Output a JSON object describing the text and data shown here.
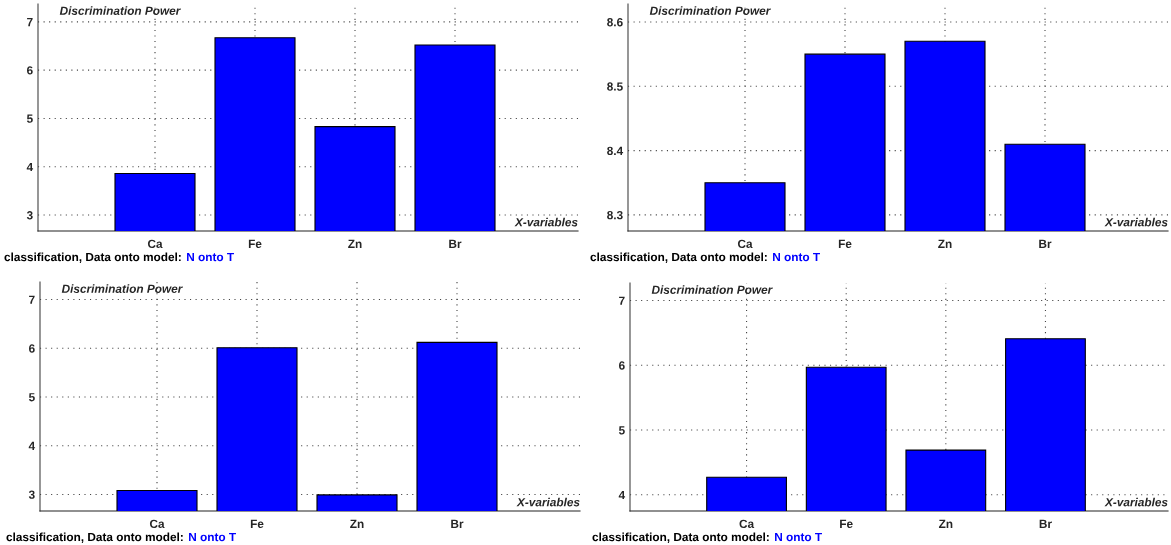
{
  "chart_data": [
    {
      "type": "bar",
      "ylabel": "Discrimination Power",
      "xlabel": "X-variables",
      "categories": [
        "Ca",
        "Fe",
        "Zn",
        "Br"
      ],
      "values": [
        3.86,
        6.67,
        4.83,
        6.52
      ],
      "color": "#0000ff",
      "ylim": [
        2.67,
        7.37
      ],
      "yticks": [
        3,
        4,
        5,
        6,
        7
      ],
      "grid": true,
      "annotations": [
        "classification, Data onto model:",
        "N onto T"
      ]
    },
    {
      "type": "bar",
      "ylabel": "Discrimination Power",
      "xlabel": "X-variables",
      "categories": [
        "Ca",
        "Fe",
        "Zn",
        "Br"
      ],
      "values": [
        8.35,
        8.55,
        8.57,
        8.41
      ],
      "color": "#0000ff",
      "ylim": [
        8.275,
        8.628
      ],
      "yticks": [
        8.3,
        8.4,
        8.5,
        8.6
      ],
      "grid": true,
      "annotations": [
        "classification, Data onto model:",
        "N onto T"
      ]
    },
    {
      "type": "bar",
      "ylabel": "Discrimination Power",
      "xlabel": "X-variables",
      "categories": [
        "Ca",
        "Fe",
        "Zn",
        "Br"
      ],
      "values": [
        3.08,
        6.01,
        2.99,
        6.12
      ],
      "color": "#0000ff",
      "ylim": [
        2.66,
        7.36
      ],
      "yticks": [
        3,
        4,
        5,
        6,
        7
      ],
      "grid": true,
      "annotations": [
        "classification, Data onto model:",
        "N onto T"
      ]
    },
    {
      "type": "bar",
      "ylabel": "Discrimination Power",
      "xlabel": "X-variables",
      "categories": [
        "Ca",
        "Fe",
        "Zn",
        "Br"
      ],
      "values": [
        4.27,
        5.97,
        4.69,
        6.41
      ],
      "color": "#0000ff",
      "ylim": [
        3.75,
        7.27
      ],
      "yticks": [
        4,
        5,
        6,
        7
      ],
      "grid": true,
      "annotations": [
        "classification, Data onto model:",
        "N onto T"
      ]
    }
  ]
}
